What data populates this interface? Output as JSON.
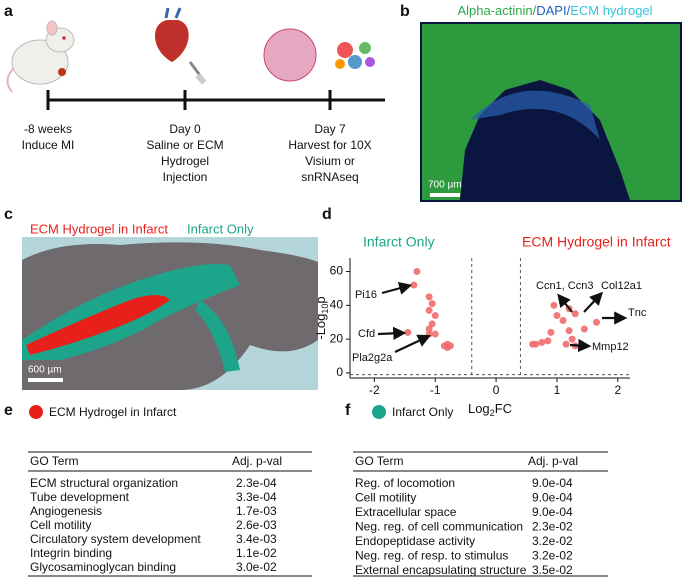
{
  "panel_a": {
    "label": "a",
    "timeline": [
      {
        "time": "-8 weeks",
        "lines": [
          "Induce MI"
        ]
      },
      {
        "time": "Day 0",
        "lines": [
          "Saline or ECM",
          "Hydrogel",
          "Injection"
        ]
      },
      {
        "time": "Day 7",
        "lines": [
          "Harvest for 10X",
          "Visium or",
          "snRNAseq"
        ]
      }
    ]
  },
  "panel_b": {
    "label": "b",
    "title": [
      {
        "text": "Alpha-actinin",
        "color": "#2ea84a"
      },
      {
        "text": "/",
        "color": "#2ea84a"
      },
      {
        "text": "DAPI",
        "color": "#1f5fbf"
      },
      {
        "text": "/",
        "color": "#1f5fbf"
      },
      {
        "text": "ECM hydrogel",
        "color": "#33c6dd"
      }
    ],
    "scale_bar": "700 µm"
  },
  "panel_c": {
    "label": "c",
    "legend": [
      {
        "text": "ECM Hydrogel in Infarct",
        "color": "#e8201c"
      },
      {
        "text": "Infarct Only",
        "color": "#1ca58a"
      }
    ],
    "scale_bar": "600 µm"
  },
  "chart_data": {
    "type": "scatter",
    "label": "d",
    "xlabel": [
      "Log",
      "2",
      "FC"
    ],
    "ylabel": [
      "-Log",
      "10",
      "p"
    ],
    "xlim": [
      -2.4,
      2.2
    ],
    "ylim": [
      -3,
      68
    ],
    "xticks": [
      -2,
      -1,
      0,
      1,
      2
    ],
    "yticks": [
      0,
      20,
      40,
      60
    ],
    "thresholds": {
      "x": [
        -0.4,
        0.4
      ],
      "y": -1
    },
    "series": [
      {
        "name": "Infarct Only",
        "label_color": "#1ca58a",
        "color": "#ef6b6b",
        "x": [
          -1.3,
          -1.35,
          -1.1,
          -1.05,
          -1.1,
          -1.0,
          -1.05,
          -1.1,
          -1.45,
          -1.1,
          -1.0,
          -0.85,
          -0.8,
          -0.75,
          -0.8
        ],
        "values": [
          60,
          52,
          45,
          41,
          37,
          34,
          29,
          26,
          24,
          23,
          23,
          16,
          15,
          16,
          17
        ]
      },
      {
        "name": "ECM Hydrogel in Infarct",
        "label_color": "#e8201c",
        "color": "#ef6b6b",
        "x": [
          0.95,
          1.2,
          1.0,
          1.3,
          1.1,
          1.65,
          1.45,
          1.2,
          0.9,
          1.25,
          0.75,
          0.6,
          0.65,
          0.85,
          1.15,
          1.3
        ],
        "values": [
          40,
          38,
          34,
          35,
          31,
          30,
          26,
          25,
          24,
          20,
          18,
          17,
          17,
          19,
          17,
          16
        ]
      }
    ],
    "annotations": [
      "Pi16",
      "Cfd",
      "Pla2g2a",
      "Ccn1, Ccn3",
      "Col12a1",
      "Tnc",
      "Mmp12"
    ]
  },
  "table_e": {
    "label": "e",
    "title": "ECM Hydrogel in Infarct",
    "color": "#e8201c",
    "columns": [
      "GO Term",
      "Adj. p-val"
    ],
    "rows": [
      [
        "ECM structural organization",
        "2.3e-04"
      ],
      [
        "Tube development",
        "3.3e-04"
      ],
      [
        "Angiogenesis",
        "1.7e-03"
      ],
      [
        "Cell motility",
        "2.6e-03"
      ],
      [
        "Circulatory system development",
        "3.4e-03"
      ],
      [
        "Integrin binding",
        "1.1e-02"
      ],
      [
        "Glycosaminoglycan binding",
        "3.0e-02"
      ]
    ]
  },
  "table_f": {
    "label": "f",
    "title": "Infarct Only",
    "color": "#1ca58a",
    "columns": [
      "GO Term",
      "Adj. p-val"
    ],
    "rows": [
      [
        "Reg. of locomotion",
        "9.0e-04"
      ],
      [
        "Cell motility",
        "9.0e-04"
      ],
      [
        "Extracellular space",
        "9.0e-04"
      ],
      [
        "Neg. reg. of cell communication",
        "2.3e-02"
      ],
      [
        "Endopeptidase activity",
        "3.2e-02"
      ],
      [
        "Neg. reg. of resp. to stimulus",
        "3.2e-02"
      ],
      [
        "External encapsulating structure",
        "3.5e-02"
      ]
    ]
  }
}
